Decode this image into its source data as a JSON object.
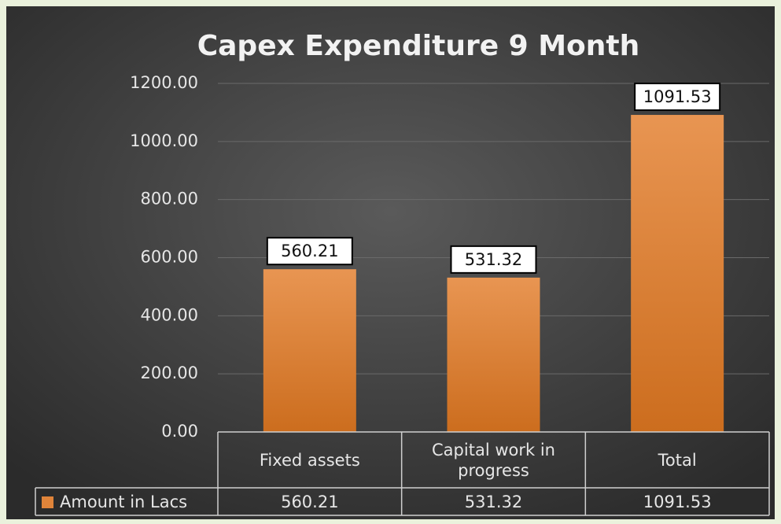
{
  "chart_data": {
    "type": "bar",
    "title": "Capex Expenditure 9 Month",
    "categories": [
      "Fixed assets",
      "Capital work in progress",
      "Total"
    ],
    "series": [
      {
        "name": "Amount in Lacs",
        "color": "#e0843a",
        "values": [
          560.21,
          531.32,
          1091.53
        ]
      }
    ],
    "ylim": [
      0,
      1200
    ],
    "yticks": [
      {
        "value": 0,
        "label": "0.00"
      },
      {
        "value": 200,
        "label": "200.00"
      },
      {
        "value": 400,
        "label": "400.00"
      },
      {
        "value": 600,
        "label": "600.00"
      },
      {
        "value": 800,
        "label": "800.00"
      },
      {
        "value": 1000,
        "label": "1000.00"
      },
      {
        "value": 1200,
        "label": "1200.00"
      }
    ],
    "grid": true,
    "data_table": true
  }
}
